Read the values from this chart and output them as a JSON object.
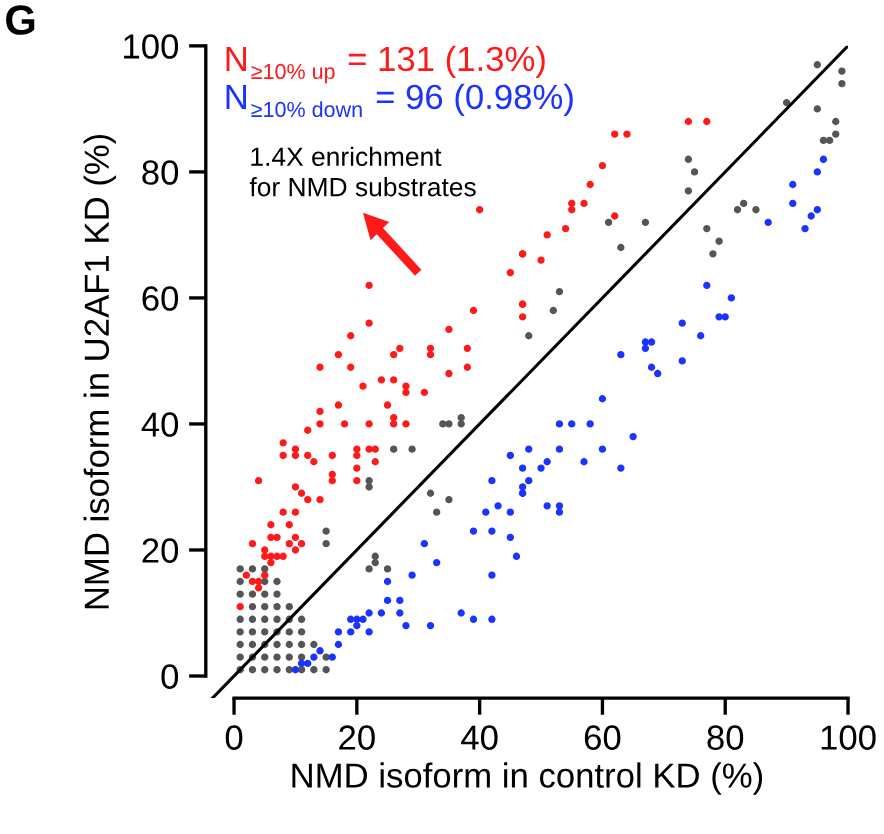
{
  "chart_data": {
    "type": "scatter",
    "xlabel": "NMD isoform in control KD (%)",
    "ylabel": "NMD isoform in U2AF1 KD (%)",
    "annotations": [
      "G",
      "1.4X enrichment\nfor NMD substrates"
    ],
    "xlim": [
      -4.6,
      100
    ],
    "ylim": [
      -3.5,
      100
    ],
    "xticks": [
      0,
      20,
      40,
      60,
      80,
      100
    ],
    "yticks": [
      0,
      20,
      40,
      60,
      80,
      100
    ],
    "grid": false,
    "legend": "top left",
    "marker": "circle",
    "series": [
      {
        "name": null,
        "color": "#555555",
        "x": [
          95,
          99,
          99,
          90,
          95,
          98,
          98,
          96,
          97,
          74,
          75,
          74,
          83,
          82,
          85,
          61,
          67,
          77,
          79,
          78,
          63,
          53,
          52,
          48,
          37,
          37,
          35,
          34,
          26,
          29,
          22,
          22,
          32,
          35,
          33,
          15,
          15,
          23,
          22,
          23,
          25,
          1,
          1,
          1,
          1,
          1,
          1,
          1,
          1,
          3,
          3,
          3,
          3,
          3,
          3,
          3,
          3,
          5,
          5,
          5,
          5,
          5,
          5,
          5,
          5,
          5,
          7,
          7,
          7,
          7,
          7,
          7,
          7,
          7,
          9,
          9,
          9,
          9,
          9,
          9,
          11,
          11,
          11,
          11,
          11,
          13,
          13,
          15,
          15
        ],
        "values": [
          97,
          96,
          94,
          91,
          90,
          88,
          86,
          85,
          85,
          82,
          80,
          77,
          75,
          74,
          74,
          72,
          72,
          71,
          69,
          67,
          68,
          61,
          58,
          54,
          41,
          40,
          40,
          40,
          36,
          36,
          31,
          30,
          29,
          28,
          26,
          23,
          21,
          19,
          17,
          18,
          17,
          1,
          3,
          5,
          7,
          9,
          13,
          15,
          17,
          1,
          3,
          5,
          7,
          9,
          11,
          13,
          17,
          1,
          3,
          5,
          7,
          9,
          11,
          13,
          15,
          17,
          1,
          3,
          5,
          7,
          9,
          11,
          13,
          15,
          1,
          3,
          5,
          7,
          9,
          11,
          1,
          3,
          5,
          7,
          9,
          1,
          5,
          1,
          3
        ]
      },
      {
        "name": "N$_{≥10% up}$ = 131 (1.3%)",
        "color": "#ff1a1a",
        "x": [
          40,
          47,
          45,
          22,
          39,
          47,
          19,
          22,
          35,
          32,
          27,
          17,
          38,
          62,
          64,
          74,
          77,
          60,
          58,
          55,
          55,
          57,
          62,
          51,
          54,
          47,
          50,
          47,
          47,
          14,
          19,
          26,
          32,
          38,
          35,
          21,
          24,
          26,
          28,
          28,
          31,
          25,
          26,
          26,
          28,
          22,
          18,
          14,
          14,
          12,
          17,
          8,
          8,
          10,
          10,
          12,
          13,
          16,
          20,
          20,
          22,
          23,
          23,
          20,
          20,
          16,
          16,
          4,
          10,
          11,
          12,
          14,
          10,
          8,
          6,
          9,
          6,
          7,
          9,
          10,
          5,
          6,
          7,
          8,
          3,
          5,
          10,
          11,
          6,
          2,
          3,
          4,
          5,
          4,
          1
        ],
        "values": [
          74,
          67,
          64,
          62,
          58,
          59,
          54,
          56,
          55,
          52,
          52,
          51,
          52,
          86,
          86,
          88,
          88,
          81,
          78,
          75,
          74,
          75,
          73,
          70,
          71,
          67,
          66,
          59,
          57,
          49,
          49,
          51,
          51,
          49,
          48,
          46,
          47,
          47,
          46,
          45,
          45,
          43,
          41,
          40,
          40,
          40,
          40,
          42,
          40,
          39,
          43,
          37,
          35,
          36,
          35,
          35,
          34,
          35,
          36,
          35,
          36,
          36,
          34,
          33,
          31,
          32,
          31,
          31,
          30,
          29,
          28,
          28,
          26,
          26,
          24,
          24,
          22,
          22,
          21,
          22,
          19,
          19,
          19,
          19,
          21,
          20,
          20,
          21,
          18,
          16,
          15,
          15,
          16,
          14,
          11
        ]
      },
      {
        "name": "N$_{≥10% down}$ = 96 (0.98%)",
        "color": "#1a33ff",
        "x": [
          48,
          45,
          47,
          42,
          48,
          47,
          43,
          45,
          41,
          42,
          39,
          45,
          46,
          42,
          31,
          33,
          29,
          25,
          27,
          25,
          27,
          24,
          37,
          39,
          42,
          32,
          28,
          22,
          20,
          19,
          20,
          21,
          22,
          19,
          17,
          17,
          14,
          13,
          16,
          12,
          10,
          11,
          96,
          95,
          91,
          91,
          95,
          94,
          93,
          87,
          77,
          81,
          79,
          80,
          73,
          76,
          67,
          68,
          67,
          63,
          73,
          68,
          69,
          60,
          53,
          55,
          58,
          65,
          53,
          60,
          57,
          51,
          50,
          63,
          47,
          47,
          51,
          53,
          53
        ],
        "values": [
          36,
          35,
          33,
          31,
          31,
          29,
          27,
          26,
          26,
          23,
          23,
          22,
          19,
          16,
          21,
          18,
          16,
          15,
          12,
          12,
          10,
          10,
          10,
          9,
          9,
          8,
          8,
          10,
          9,
          9,
          8,
          9,
          7,
          7,
          7,
          5,
          4,
          3,
          3,
          2,
          1,
          2,
          82,
          80,
          78,
          75,
          74,
          73,
          71,
          72,
          62,
          60,
          57,
          57,
          56,
          54,
          53,
          53,
          52,
          51,
          50,
          49,
          48,
          44,
          40,
          40,
          40,
          38,
          36,
          36,
          34,
          34,
          33,
          33,
          30,
          29,
          27,
          27,
          26
        ]
      },
      {
        "name": null,
        "type": "line",
        "color": "#000000",
        "line_style": "solid",
        "marker": "none",
        "x": [
          -3.5,
          100
        ],
        "values": [
          -3.5,
          100
        ]
      }
    ]
  }
}
